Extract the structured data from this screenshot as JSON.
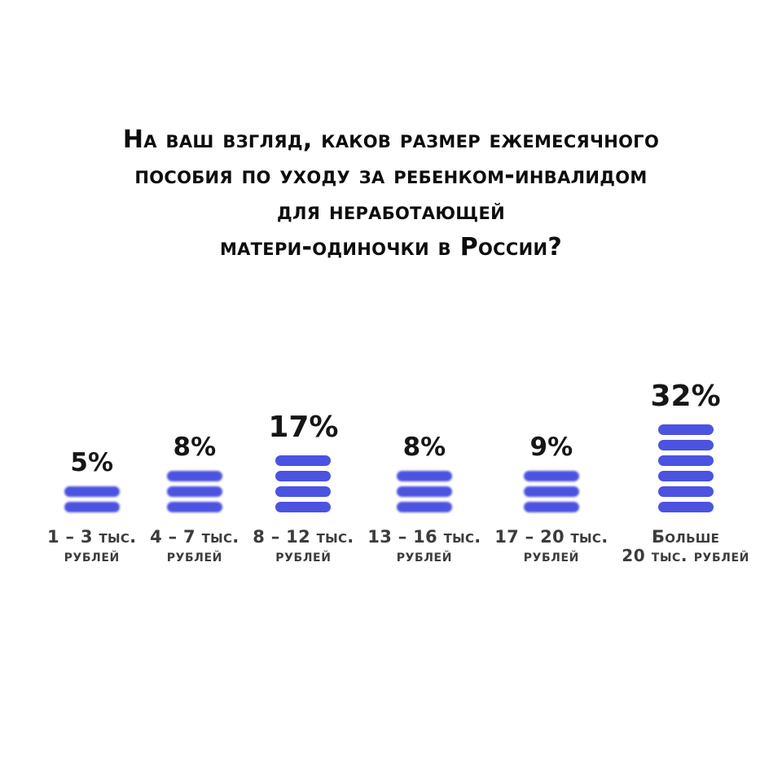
{
  "title": {
    "full": "На ваш взгляд, каков размер ежемесячного пособия по уходу за ребенком-инвалидом для неработающей матери-одиночки в России?",
    "lines": [
      "На ваш взгляд, каков размер ежемесячного",
      "пособия по уходу за ребенком-инвалидом",
      "для неработающей",
      "матери-одиночки в России?"
    ]
  },
  "chart_data": {
    "type": "bar",
    "title": "На ваш взгляд, каков размер ежемесячного пособия по уходу за ребенком-инвалидом для неработающей матери-одиночки в России?",
    "unit": "%",
    "orientation": "vertical",
    "bar_glyph": "stacked-pills",
    "grid": false,
    "legend": false,
    "axes_hidden": true,
    "bar_color": "#4b53e0",
    "background_color": "#ffffff",
    "value_label_color": "#161616",
    "category_label_color": "#3c3c3c",
    "categories": [
      "1 – 3 тыс. рублей",
      "4 – 7 тыс. рублей",
      "8 – 12 тыс. рублей",
      "13 – 16 тыс. рублей",
      "17 – 20 тыс. рублей",
      "Больше 20 тыс. рублей"
    ],
    "values": [
      5,
      8,
      17,
      8,
      9,
      32
    ],
    "bars": [
      {
        "value": 5,
        "value_label": "5%",
        "category_line1": "1 – 3 тыс.",
        "category_line2": "рублей",
        "pills": 2,
        "soft_focus": true
      },
      {
        "value": 8,
        "value_label": "8%",
        "category_line1": "4 – 7 тыс.",
        "category_line2": "рублей",
        "pills": 3,
        "soft_focus": true
      },
      {
        "value": 17,
        "value_label": "17%",
        "category_line1": "8 – 12 тыс.",
        "category_line2": "рублей",
        "pills": 4,
        "soft_focus": false
      },
      {
        "value": 8,
        "value_label": "8%",
        "category_line1": "13 – 16 тыс.",
        "category_line2": "рублей",
        "pills": 3,
        "soft_focus": true
      },
      {
        "value": 9,
        "value_label": "9%",
        "category_line1": "17 – 20 тыс.",
        "category_line2": "рублей",
        "pills": 3,
        "soft_focus": true
      },
      {
        "value": 32,
        "value_label": "32%",
        "category_line1": "Больше",
        "category_line2": "20 тыс. рублей",
        "pills": 6,
        "soft_focus": false
      }
    ]
  }
}
